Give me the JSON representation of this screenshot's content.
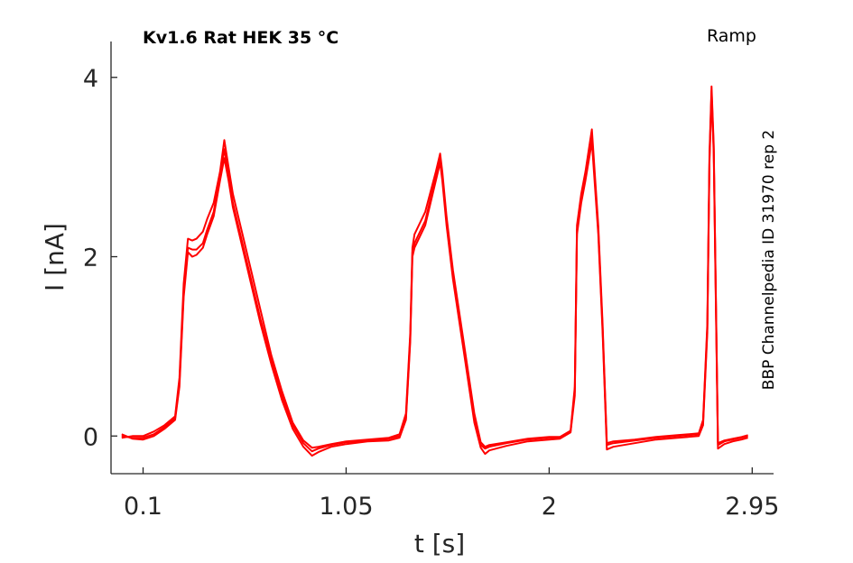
{
  "chart_data": {
    "type": "line",
    "title": "Kv1.6  Rat  HEK  35 °C",
    "protocol": "Ramp",
    "source": "BBP Channelpedia ID 31970 rep 2",
    "xlabel": "t [s]",
    "ylabel": "I [nA]",
    "xlim": [
      -0.05,
      3.05
    ],
    "ylim": [
      -0.42,
      4.4
    ],
    "x_ticks": [
      0.1,
      1.05,
      2,
      2.95
    ],
    "x_tick_labels": [
      "0.1",
      "1.05",
      "2",
      "2.95"
    ],
    "y_ticks": [
      0,
      2,
      4
    ],
    "y_tick_labels": [
      "0",
      "2",
      "4"
    ],
    "grid": false,
    "line_color": "#ff0000",
    "series": [
      {
        "x": [
          0.0,
          0.05,
          0.1,
          0.15,
          0.2,
          0.25,
          0.27,
          0.29,
          0.31,
          0.33,
          0.35,
          0.38,
          0.4,
          0.43,
          0.46,
          0.48,
          0.5,
          0.52,
          0.55,
          0.6,
          0.65,
          0.7,
          0.75,
          0.8,
          0.85,
          0.89,
          0.92,
          0.98,
          1.05,
          1.15,
          1.25,
          1.3,
          1.33,
          1.35,
          1.36,
          1.37,
          1.38,
          1.42,
          1.47,
          1.49,
          1.5,
          1.52,
          1.55,
          1.6,
          1.65,
          1.68,
          1.7,
          1.72,
          1.8,
          1.9,
          2.0,
          2.05,
          2.1,
          2.12,
          2.13,
          2.15,
          2.17,
          2.2,
          2.23,
          2.25,
          2.27,
          2.3,
          2.4,
          2.5,
          2.6,
          2.7,
          2.72,
          2.74,
          2.75,
          2.76,
          2.77,
          2.78,
          2.79,
          2.82,
          2.86,
          2.9,
          2.93
        ],
        "values": [
          0.0,
          -0.02,
          -0.02,
          0.02,
          0.1,
          0.2,
          0.6,
          1.6,
          2.1,
          2.08,
          2.08,
          2.15,
          2.3,
          2.5,
          2.9,
          3.2,
          2.9,
          2.6,
          2.3,
          1.8,
          1.3,
          0.85,
          0.45,
          0.12,
          -0.08,
          -0.17,
          -0.14,
          -0.1,
          -0.07,
          -0.05,
          -0.03,
          0.0,
          0.2,
          1.1,
          2.05,
          2.15,
          2.2,
          2.4,
          2.9,
          3.1,
          2.9,
          2.4,
          1.8,
          1.0,
          0.2,
          -0.1,
          -0.14,
          -0.12,
          -0.08,
          -0.04,
          -0.02,
          -0.02,
          0.05,
          0.5,
          2.3,
          2.65,
          2.9,
          3.35,
          2.3,
          1.2,
          -0.1,
          -0.08,
          -0.05,
          -0.02,
          0.0,
          0.02,
          0.15,
          1.2,
          3.1,
          3.85,
          3.2,
          1.5,
          -0.1,
          -0.06,
          -0.04,
          -0.02,
          0.0
        ]
      },
      {
        "x": [
          0.0,
          0.05,
          0.1,
          0.15,
          0.2,
          0.25,
          0.27,
          0.29,
          0.31,
          0.33,
          0.35,
          0.38,
          0.4,
          0.43,
          0.46,
          0.48,
          0.5,
          0.52,
          0.55,
          0.6,
          0.65,
          0.7,
          0.75,
          0.8,
          0.85,
          0.89,
          0.92,
          0.98,
          1.05,
          1.15,
          1.25,
          1.3,
          1.33,
          1.35,
          1.36,
          1.37,
          1.38,
          1.42,
          1.47,
          1.49,
          1.5,
          1.52,
          1.55,
          1.6,
          1.65,
          1.68,
          1.7,
          1.72,
          1.8,
          1.9,
          2.0,
          2.05,
          2.1,
          2.12,
          2.13,
          2.15,
          2.17,
          2.2,
          2.23,
          2.25,
          2.27,
          2.3,
          2.4,
          2.5,
          2.6,
          2.7,
          2.72,
          2.74,
          2.75,
          2.76,
          2.77,
          2.78,
          2.79,
          2.82,
          2.86,
          2.9,
          2.93
        ],
        "values": [
          -0.02,
          0.0,
          0.0,
          0.05,
          0.12,
          0.22,
          0.65,
          1.7,
          2.2,
          2.18,
          2.2,
          2.28,
          2.42,
          2.6,
          2.95,
          3.3,
          3.0,
          2.7,
          2.4,
          1.9,
          1.4,
          0.9,
          0.5,
          0.15,
          -0.05,
          -0.13,
          -0.12,
          -0.09,
          -0.06,
          -0.04,
          -0.02,
          0.02,
          0.25,
          1.15,
          2.1,
          2.25,
          2.3,
          2.5,
          2.95,
          3.15,
          2.95,
          2.45,
          1.85,
          1.05,
          0.25,
          -0.07,
          -0.12,
          -0.1,
          -0.07,
          -0.03,
          -0.01,
          -0.01,
          0.06,
          0.55,
          2.35,
          2.7,
          2.95,
          3.42,
          2.35,
          1.25,
          -0.08,
          -0.06,
          -0.04,
          -0.01,
          0.01,
          0.03,
          0.18,
          1.25,
          3.15,
          3.9,
          3.25,
          1.55,
          -0.08,
          -0.05,
          -0.03,
          -0.01,
          0.01
        ]
      },
      {
        "x": [
          0.0,
          0.05,
          0.1,
          0.15,
          0.2,
          0.25,
          0.27,
          0.29,
          0.31,
          0.33,
          0.35,
          0.38,
          0.4,
          0.43,
          0.46,
          0.48,
          0.5,
          0.52,
          0.55,
          0.6,
          0.65,
          0.7,
          0.75,
          0.8,
          0.85,
          0.89,
          0.92,
          0.98,
          1.05,
          1.15,
          1.25,
          1.3,
          1.33,
          1.35,
          1.36,
          1.37,
          1.38,
          1.42,
          1.47,
          1.49,
          1.5,
          1.52,
          1.55,
          1.6,
          1.65,
          1.68,
          1.7,
          1.72,
          1.8,
          1.9,
          2.0,
          2.05,
          2.1,
          2.12,
          2.13,
          2.15,
          2.17,
          2.2,
          2.23,
          2.25,
          2.27,
          2.3,
          2.4,
          2.5,
          2.6,
          2.7,
          2.72,
          2.74,
          2.75,
          2.76,
          2.77,
          2.78,
          2.79,
          2.82,
          2.86,
          2.9,
          2.93
        ],
        "values": [
          0.02,
          -0.03,
          -0.04,
          0.0,
          0.08,
          0.18,
          0.55,
          1.55,
          2.05,
          2.0,
          2.02,
          2.1,
          2.25,
          2.45,
          2.85,
          3.1,
          2.85,
          2.55,
          2.25,
          1.75,
          1.25,
          0.8,
          0.4,
          0.08,
          -0.12,
          -0.22,
          -0.18,
          -0.12,
          -0.09,
          -0.06,
          -0.05,
          -0.02,
          0.18,
          1.05,
          2.0,
          2.1,
          2.15,
          2.35,
          2.85,
          3.05,
          2.85,
          2.35,
          1.75,
          0.95,
          0.15,
          -0.13,
          -0.2,
          -0.16,
          -0.11,
          -0.06,
          -0.04,
          -0.03,
          0.04,
          0.45,
          2.25,
          2.6,
          2.85,
          3.28,
          2.25,
          1.15,
          -0.15,
          -0.12,
          -0.08,
          -0.04,
          -0.02,
          0.0,
          0.12,
          1.15,
          3.05,
          3.8,
          3.15,
          1.45,
          -0.14,
          -0.09,
          -0.06,
          -0.04,
          -0.02
        ]
      }
    ]
  }
}
